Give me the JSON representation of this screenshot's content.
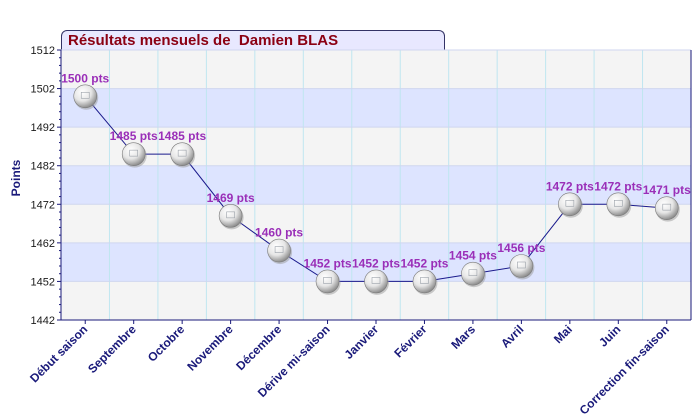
{
  "chart_data": {
    "type": "line",
    "title": "Résultats mensuels de  Damien BLAS",
    "ylabel": "Points",
    "xlabel": "",
    "ylim": [
      1442,
      1512
    ],
    "y_ticks": [
      1442,
      1452,
      1462,
      1472,
      1482,
      1492,
      1502,
      1512
    ],
    "categories": [
      "Début saison",
      "Septembre",
      "Octobre",
      "Novembre",
      "Décembre",
      "Dérive mi-saison",
      "Janvier",
      "Février",
      "Mars",
      "Avril",
      "Mai",
      "Juin",
      "Correction fin-saison"
    ],
    "values": [
      1500,
      1485,
      1485,
      1469,
      1460,
      1452,
      1452,
      1452,
      1454,
      1456,
      1472,
      1472,
      1471
    ],
    "data_labels": [
      "1500 pts",
      "1485 pts",
      "1485 pts",
      "1469 pts",
      "1460 pts",
      "1452 pts",
      "1452 pts",
      "1452 pts",
      "1454 pts",
      "1456 pts",
      "1472 pts",
      "1472 pts",
      "1471 pts"
    ],
    "grid": true,
    "colors": {
      "band": "#dde4ff",
      "band_alt": "#f4f4f4",
      "line": "#1a1a8c",
      "axis": "#1a1a7a",
      "data_label": "#9a2fb8",
      "title": "#8b0012",
      "grid_v": "#bfe6f0"
    }
  }
}
